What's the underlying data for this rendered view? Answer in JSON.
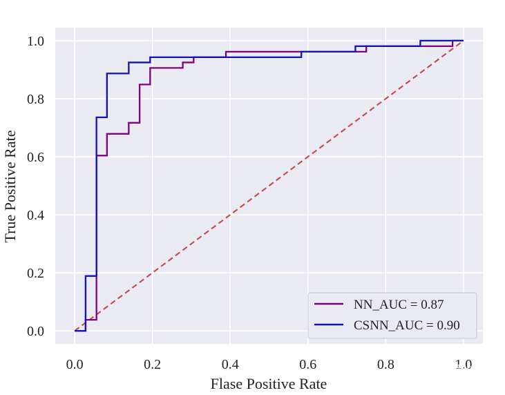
{
  "chart_data": {
    "type": "line",
    "title": "",
    "xlabel": "Flase Positive Rate",
    "ylabel": "True Positive Rate",
    "xlim": [
      -0.05,
      1.05
    ],
    "ylim": [
      -0.045,
      1.045
    ],
    "xticks": [
      "0.0",
      "0.2",
      "0.4",
      "0.6",
      "0.8",
      "1.0"
    ],
    "yticks": [
      "0.0",
      "0.2",
      "0.4",
      "0.6",
      "0.8",
      "1.0"
    ],
    "grid": true,
    "legend_position": "lower-right",
    "series": [
      {
        "name": "NN_AUC = 0.87",
        "color": "#800080",
        "x": [
          0.0,
          0.028,
          0.028,
          0.056,
          0.056,
          0.083,
          0.083,
          0.139,
          0.139,
          0.167,
          0.167,
          0.194,
          0.194,
          0.278,
          0.278,
          0.306,
          0.306,
          0.389,
          0.389,
          0.583,
          0.583,
          0.75,
          0.75,
          0.972,
          0.972,
          1.0
        ],
        "y": [
          0.0,
          0.0,
          0.038,
          0.038,
          0.604,
          0.604,
          0.679,
          0.679,
          0.717,
          0.717,
          0.849,
          0.849,
          0.906,
          0.906,
          0.925,
          0.925,
          0.943,
          0.943,
          0.962,
          0.962,
          0.962,
          0.962,
          0.981,
          0.981,
          1.0,
          1.0
        ]
      },
      {
        "name": "CSNN_AUC = 0.90",
        "color": "#1010c0",
        "x": [
          0.0,
          0.028,
          0.028,
          0.056,
          0.056,
          0.083,
          0.083,
          0.139,
          0.139,
          0.194,
          0.194,
          0.306,
          0.306,
          0.583,
          0.583,
          0.722,
          0.722,
          0.889,
          0.889,
          1.0
        ],
        "y": [
          0.0,
          0.0,
          0.189,
          0.189,
          0.736,
          0.736,
          0.887,
          0.887,
          0.925,
          0.925,
          0.943,
          0.943,
          0.943,
          0.943,
          0.962,
          0.962,
          0.981,
          0.981,
          1.0,
          1.0
        ]
      }
    ],
    "reference_line": {
      "x": [
        0,
        1
      ],
      "y": [
        0,
        1
      ],
      "color": "#c44e52",
      "style": "dashed"
    },
    "colors": {
      "plot_background": "#eaeaf2",
      "grid": "#ffffff"
    }
  },
  "watermark": "知乎 @不再依然"
}
